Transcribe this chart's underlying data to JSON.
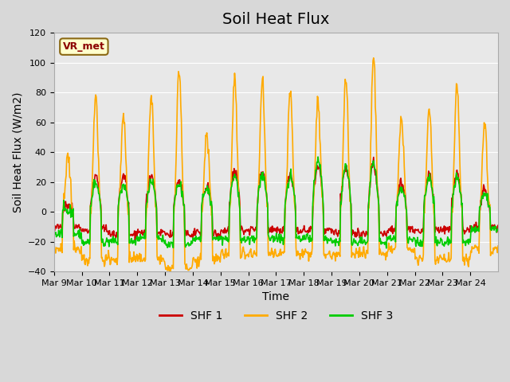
{
  "title": "Soil Heat Flux",
  "xlabel": "Time",
  "ylabel": "Soil Heat Flux (W/m2)",
  "ylim": [
    -40,
    120
  ],
  "yticks": [
    -40,
    -20,
    0,
    20,
    40,
    60,
    80,
    100,
    120
  ],
  "xtick_labels": [
    "Mar 9",
    "Mar 10",
    "Mar 11",
    "Mar 12",
    "Mar 13",
    "Mar 14",
    "Mar 15",
    "Mar 16",
    "Mar 17",
    "Mar 18",
    "Mar 19",
    "Mar 20",
    "Mar 21",
    "Mar 22",
    "Mar 23",
    "Mar 24"
  ],
  "colors": {
    "SHF1": "#cc0000",
    "SHF2": "#ffaa00",
    "SHF3": "#00cc00"
  },
  "legend_labels": [
    "SHF 1",
    "SHF 2",
    "SHF 3"
  ],
  "annotation_text": "VR_met",
  "annotation_color": "#8b0000",
  "annotation_bg": "#ffffcc",
  "annotation_edge": "#8b6914",
  "fig_bg": "#d8d8d8",
  "plot_bg": "#e8e8e8",
  "grid_color": "#ffffff",
  "title_fontsize": 14,
  "label_fontsize": 10,
  "tick_fontsize": 8,
  "line_width": 1.2,
  "n_days": 16,
  "n_per_day": 48,
  "day_peaks_shf2": [
    37,
    78,
    65,
    78,
    95,
    53,
    90,
    89,
    82,
    75,
    92,
    105,
    65,
    70,
    85,
    60
  ],
  "day_peaks_shf1": [
    5,
    23,
    24,
    23,
    22,
    17,
    28,
    28,
    25,
    30,
    30,
    32,
    20,
    25,
    25,
    15
  ],
  "day_peaks_shf3": [
    0,
    20,
    18,
    20,
    19,
    15,
    24,
    25,
    23,
    35,
    30,
    32,
    15,
    22,
    22,
    12
  ],
  "night_shf1": [
    -10,
    -12,
    -15,
    -14,
    -15,
    -15,
    -12,
    -12,
    -12,
    -12,
    -14,
    -15,
    -12,
    -12,
    -12,
    -10
  ],
  "night_shf2": [
    -25,
    -32,
    -32,
    -32,
    -38,
    -32,
    -28,
    -28,
    -28,
    -28,
    -28,
    -28,
    -25,
    -32,
    -32,
    -25
  ],
  "night_shf3": [
    -15,
    -20,
    -20,
    -18,
    -22,
    -18,
    -18,
    -18,
    -18,
    -18,
    -20,
    -20,
    -18,
    -20,
    -20,
    -12
  ]
}
